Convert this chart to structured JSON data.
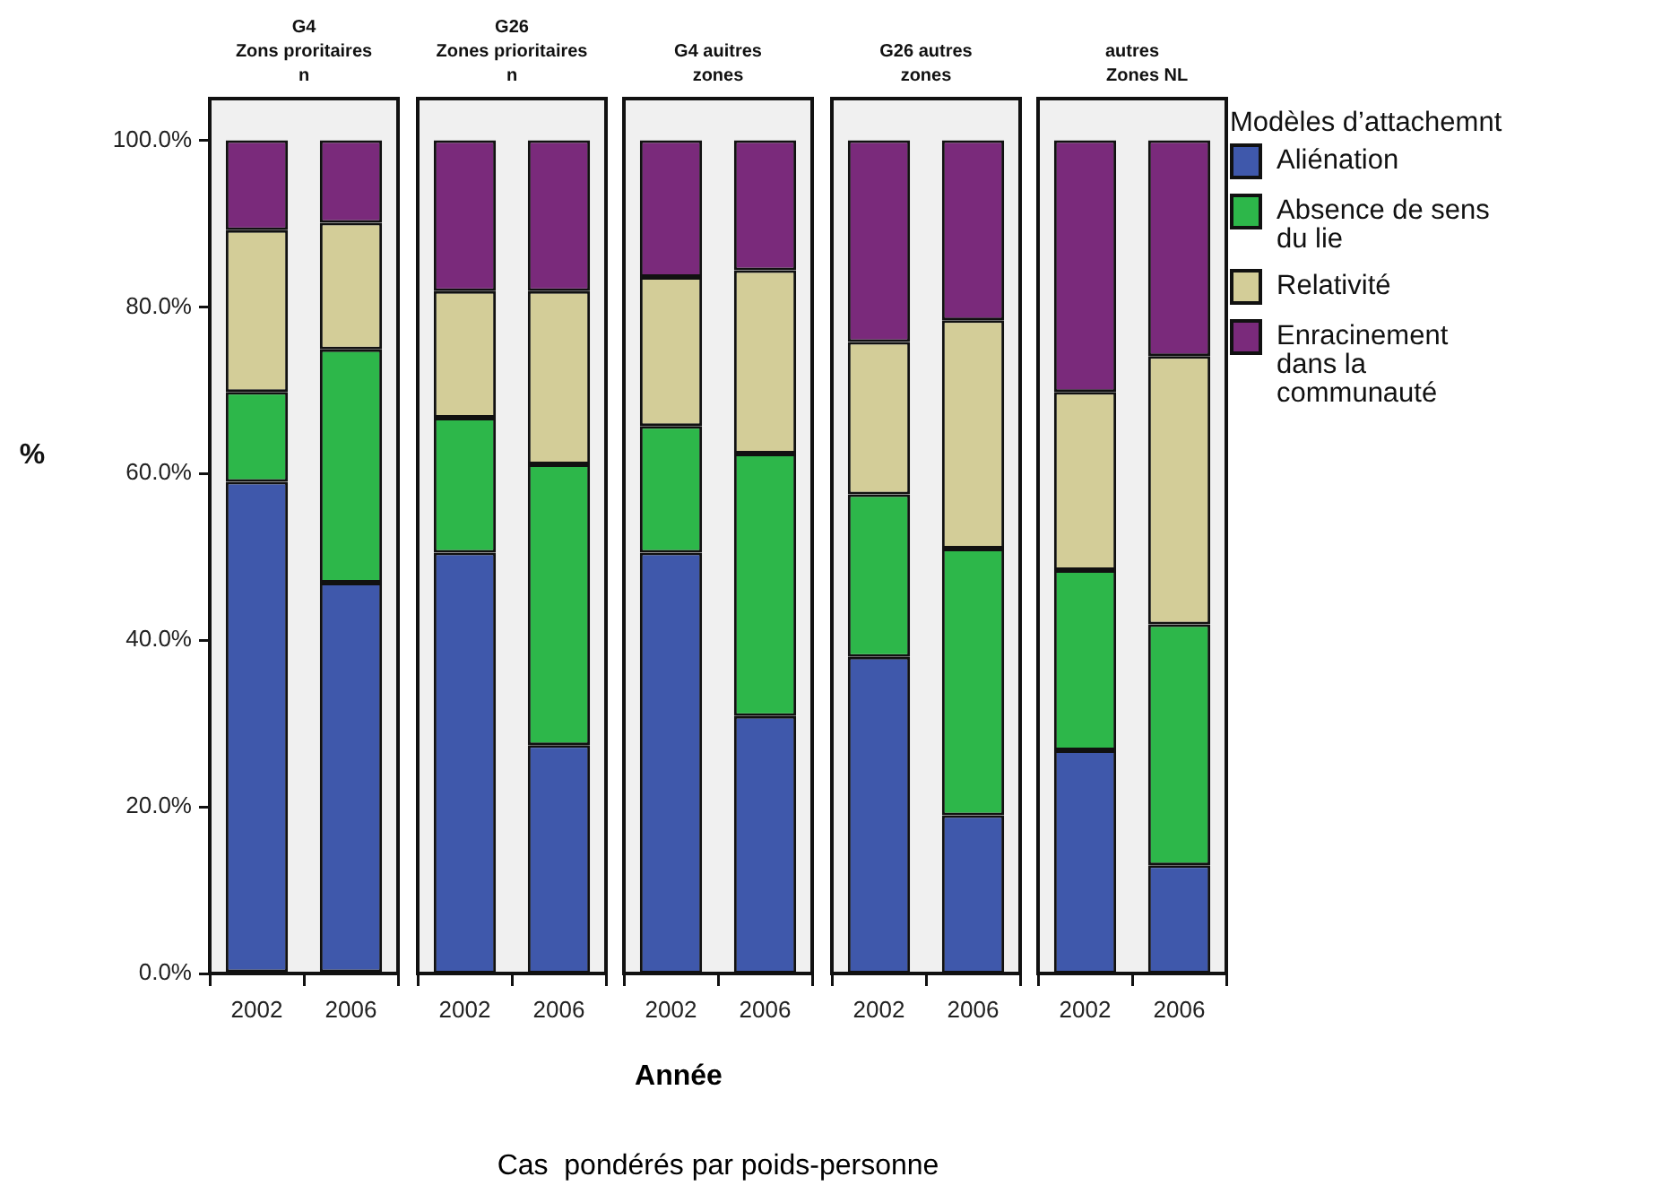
{
  "chart_data": [
    {
      "type": "bar",
      "stacked": true,
      "title": "G4\nZons proritaires\nn",
      "ylabel": "%",
      "categories": [
        "2002",
        "2006"
      ],
      "ylim": [
        0,
        105
      ],
      "yticks": [
        {
          "value": 0,
          "label": "0.0%"
        },
        {
          "value": 20,
          "label": "20.0%"
        },
        {
          "value": 40,
          "label": "40.0%"
        },
        {
          "value": 60,
          "label": "60.0%"
        },
        {
          "value": 80,
          "label": "80.0%"
        },
        {
          "value": 100,
          "label": "100.0%"
        }
      ],
      "series": [
        {
          "color": "#3f58ab",
          "values": [
            59.0,
            46.9
          ]
        },
        {
          "color": "#2db74a",
          "values": [
            10.8,
            28.0
          ]
        },
        {
          "color": "#d3cd98",
          "values": [
            19.4,
            15.2
          ]
        },
        {
          "color": "#7a2a7b",
          "values": [
            10.8,
            9.9
          ]
        }
      ]
    },
    {
      "type": "bar",
      "stacked": true,
      "title": "G26\nZones prioritaires\nn",
      "tick_labels": "x",
      "categories": [
        "2002",
        "2006"
      ],
      "ylim": [
        0,
        105
      ],
      "series": [
        {
          "color": "#3f58ab",
          "values": [
            50.5,
            27.4
          ]
        },
        {
          "color": "#2db74a",
          "values": [
            16.2,
            33.7
          ]
        },
        {
          "color": "#d3cd98",
          "values": [
            15.2,
            20.8
          ]
        },
        {
          "color": "#7a2a7b",
          "values": [
            18.1,
            18.1
          ]
        }
      ]
    },
    {
      "type": "bar",
      "stacked": true,
      "title": "G4 auitres\nzones",
      "xlabel": "Année",
      "annotations": [
        "Cas  pondérés par poids-personne"
      ],
      "tick_labels": "x",
      "categories": [
        "2002",
        "2006"
      ],
      "ylim": [
        0,
        105
      ],
      "series": [
        {
          "color": "#3f58ab",
          "values": [
            50.5,
            30.9
          ]
        },
        {
          "color": "#2db74a",
          "values": [
            15.2,
            31.5
          ]
        },
        {
          "color": "#d3cd98",
          "values": [
            17.9,
            22.0
          ]
        },
        {
          "color": "#7a2a7b",
          "values": [
            16.4,
            15.6
          ]
        }
      ]
    },
    {
      "type": "bar",
      "stacked": true,
      "title": "G26 autres\nzones",
      "tick_labels": "x",
      "categories": [
        "2002",
        "2006"
      ],
      "ylim": [
        0,
        105
      ],
      "series": [
        {
          "color": "#3f58ab",
          "values": [
            38.0,
            19.0
          ]
        },
        {
          "color": "#2db74a",
          "values": [
            19.5,
            32.0
          ]
        },
        {
          "color": "#d3cd98",
          "values": [
            18.3,
            27.4
          ]
        },
        {
          "color": "#7a2a7b",
          "values": [
            24.2,
            21.6
          ]
        }
      ]
    },
    {
      "type": "bar",
      "stacked": true,
      "title": "autres\n      Zones NL",
      "tick_labels": "x",
      "legend": "right",
      "legend_title": "Modèles d’attachemnt",
      "categories": [
        "2002",
        "2006"
      ],
      "ylim": [
        0,
        105
      ],
      "series": [
        {
          "name": "Aliénation",
          "color": "#3f58ab",
          "values": [
            26.8,
            13.0
          ]
        },
        {
          "name": "Absence de sens du lie",
          "color": "#2db74a",
          "values": [
            21.6,
            28.9
          ]
        },
        {
          "name": "Relativité",
          "color": "#d3cd98",
          "values": [
            21.4,
            32.2
          ]
        },
        {
          "name": "Enracinement dans la communauté",
          "color": "#7a2a7b",
          "values": [
            30.2,
            25.9
          ]
        }
      ]
    }
  ]
}
